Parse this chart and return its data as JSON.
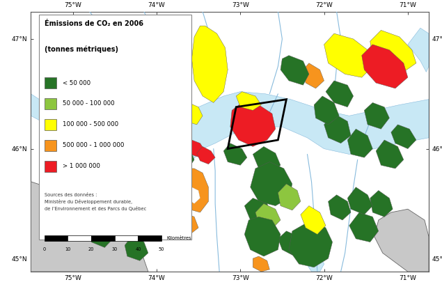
{
  "title_line1": "Émissions de CO₂ en 2006",
  "title_line2": "(tonnes métriques)",
  "legend_labels": [
    "< 50 000",
    "50 000 - 100 000",
    "100 000 - 500 000",
    "500 000 - 1 000 000",
    "> 1 000 000"
  ],
  "legend_colors": [
    "#267326",
    "#8dc63f",
    "#ffff00",
    "#f7941d",
    "#ed1c24"
  ],
  "source_text": "Sources des données :\nMinistère du Développement durable,\nde l’Environnement et des Parcs du Québec",
  "scale_label": "Kilomètres",
  "scale_ticks": [
    "0",
    "10",
    "20",
    "30",
    "40",
    "50"
  ],
  "bg_water_color": "#c8e8f5",
  "bg_land_color": "#ffffff",
  "bg_gray_color": "#c8c8c8",
  "border_color": "#555555",
  "lon_min": -75.5,
  "lon_max": -70.75,
  "lat_min": 44.88,
  "lat_max": 47.25,
  "lon_ticks": [
    -75,
    -74,
    -73,
    -72,
    -71
  ],
  "lat_ticks": [
    45,
    46,
    47
  ],
  "tick_labels_lon": [
    "75°W",
    "74°W",
    "73°W",
    "72°W",
    "71°W"
  ],
  "tick_labels_lat": [
    "45°N",
    "46°N",
    "47°N"
  ]
}
